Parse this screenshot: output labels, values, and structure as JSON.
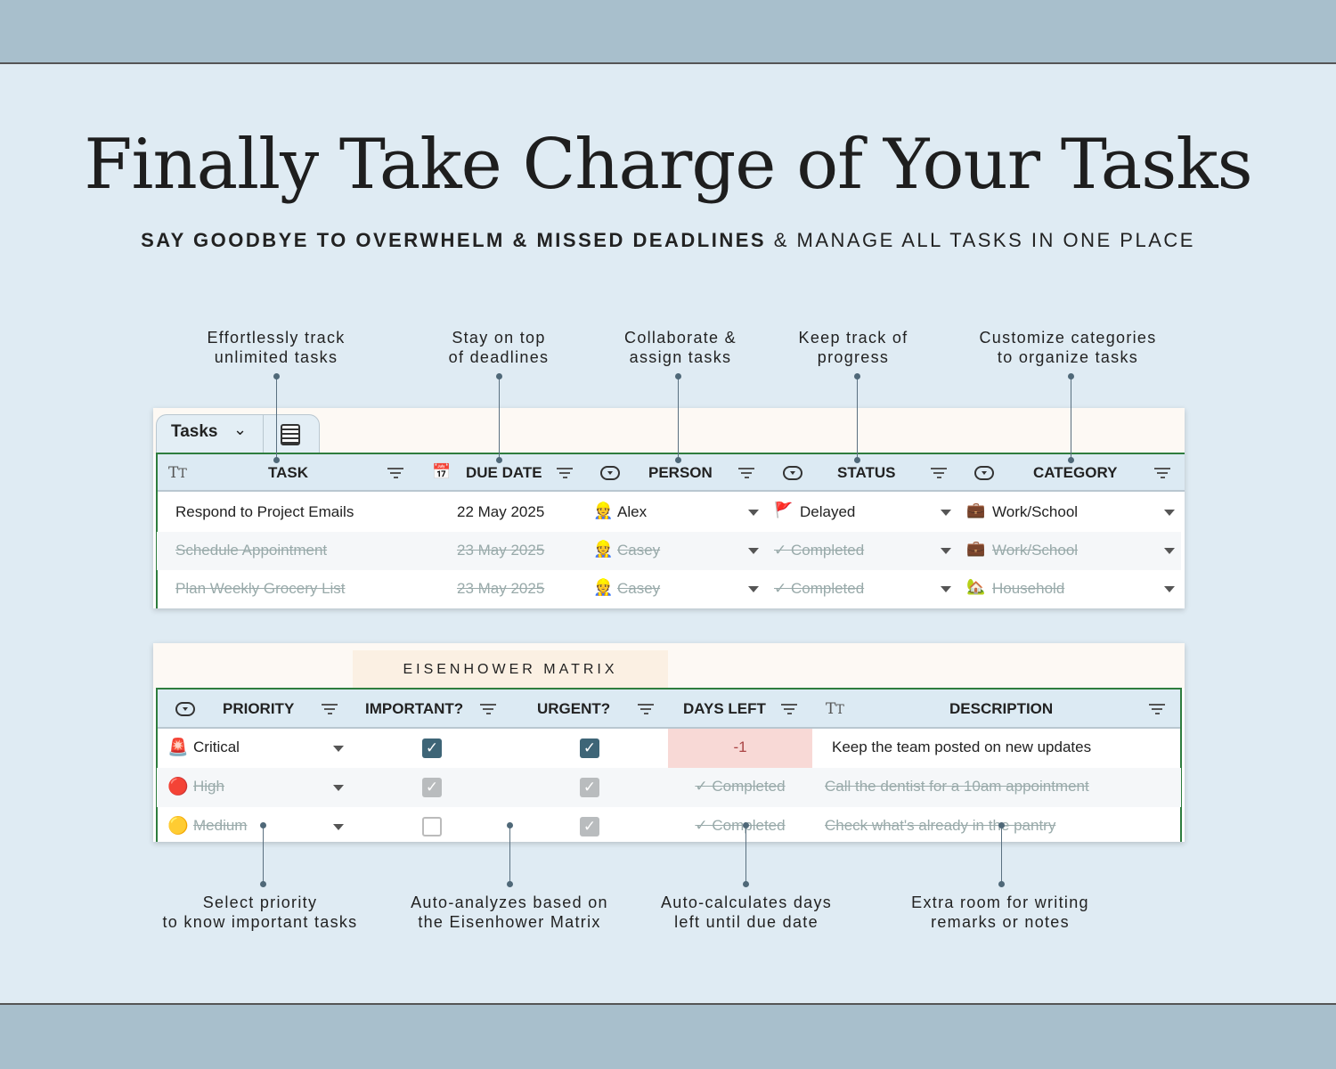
{
  "headline": "Finally Take Charge of Your Tasks",
  "subheadline": {
    "bold": "SAY GOODBYE TO OVERWHELM & MISSED DEADLINES",
    "regular": "& MANAGE ALL TASKS IN ONE PLACE"
  },
  "callouts_top": [
    "Effortlessly track\nunlimited tasks",
    "Stay on top\nof deadlines",
    "Collaborate &\nassign tasks",
    "Keep track of\nprogress",
    "Customize categories\nto organize tasks"
  ],
  "callouts_bottom": [
    "Select priority\nto know important tasks",
    "Auto-analyzes based on\nthe Eisenhower Matrix",
    "Auto-calculates days\nleft until due date",
    "Extra room for writing\nremarks or notes"
  ],
  "tasks_table": {
    "tab_label": "Tasks",
    "columns": [
      "TASK",
      "DUE DATE",
      "PERSON",
      "STATUS",
      "CATEGORY"
    ],
    "rows": [
      {
        "task": "Respond to Project Emails",
        "due": "22 May 2025",
        "person": "Alex",
        "status": "Delayed",
        "category": "Work/School",
        "done": false
      },
      {
        "task": "Schedule Appointment",
        "due": "23 May 2025",
        "person": "Casey",
        "status": "✓ Completed",
        "category": "Work/School",
        "done": true
      },
      {
        "task": "Plan Weekly Grocery List",
        "due": "23 May 2025",
        "person": "Casey",
        "status": "✓ Completed",
        "category": "Household",
        "done": true
      }
    ]
  },
  "matrix_table": {
    "section_label": "EISENHOWER MATRIX",
    "columns": [
      "PRIORITY",
      "IMPORTANT?",
      "URGENT?",
      "DAYS LEFT",
      "DESCRIPTION"
    ],
    "rows": [
      {
        "priority": "Critical",
        "important": true,
        "urgent": true,
        "days_left": "-1",
        "description": "Keep the team posted on new updates",
        "done": false
      },
      {
        "priority": "High",
        "important": true,
        "urgent": true,
        "days_left": "✓ Completed",
        "description": "Call the dentist for a 10am appointment",
        "done": true
      },
      {
        "priority": "Medium",
        "important": false,
        "urgent": true,
        "days_left": "✓ Completed",
        "description": "Check what's already in the pantry",
        "done": true
      }
    ]
  },
  "colors": {
    "accent_green": "#2e7d3e",
    "header_bg": "#dceaf3",
    "checkbox": "#3e6577",
    "overdue_bg": "#f8d9d6"
  }
}
